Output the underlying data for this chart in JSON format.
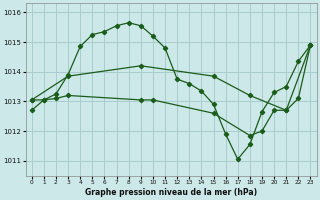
{
  "title": "Graphe pression niveau de la mer (hPa)",
  "bg_color": "#cce8e8",
  "grid_color": "#aacccc",
  "line_color": "#1a5c1a",
  "xlim": [
    -0.5,
    23.5
  ],
  "ylim": [
    1010.5,
    1016.3
  ],
  "yticks": [
    1011,
    1012,
    1013,
    1014,
    1015,
    1016
  ],
  "xticks": [
    0,
    1,
    2,
    3,
    4,
    5,
    6,
    7,
    8,
    9,
    10,
    11,
    12,
    13,
    14,
    15,
    16,
    17,
    18,
    19,
    20,
    21,
    22,
    23
  ],
  "line1_x": [
    0,
    1,
    2,
    3,
    4,
    5,
    6,
    7,
    8,
    9,
    10,
    11,
    12,
    13,
    14,
    15,
    16,
    17,
    18,
    19,
    20,
    21,
    22,
    23
  ],
  "line1_y": [
    1012.7,
    1013.05,
    1013.25,
    1013.9,
    1014.85,
    1015.25,
    1015.35,
    1015.55,
    1015.65,
    1015.55,
    1015.2,
    1014.8,
    1013.75,
    1013.6,
    1013.35,
    1012.9,
    1011.9,
    1011.05,
    1011.55,
    1012.65,
    1013.3,
    1013.5,
    1014.35,
    1014.9
  ],
  "line2_x": [
    0,
    3,
    9,
    15,
    18,
    21,
    23
  ],
  "line2_y": [
    1013.05,
    1013.85,
    1014.2,
    1013.85,
    1013.2,
    1012.7,
    1014.9
  ],
  "line3_x": [
    0,
    1,
    2,
    3,
    9,
    10,
    15,
    18,
    19,
    20,
    21,
    22,
    23
  ],
  "line3_y": [
    1013.05,
    1013.05,
    1013.1,
    1013.2,
    1013.05,
    1013.05,
    1012.6,
    1011.85,
    1012.0,
    1012.7,
    1012.7,
    1013.1,
    1014.9
  ]
}
